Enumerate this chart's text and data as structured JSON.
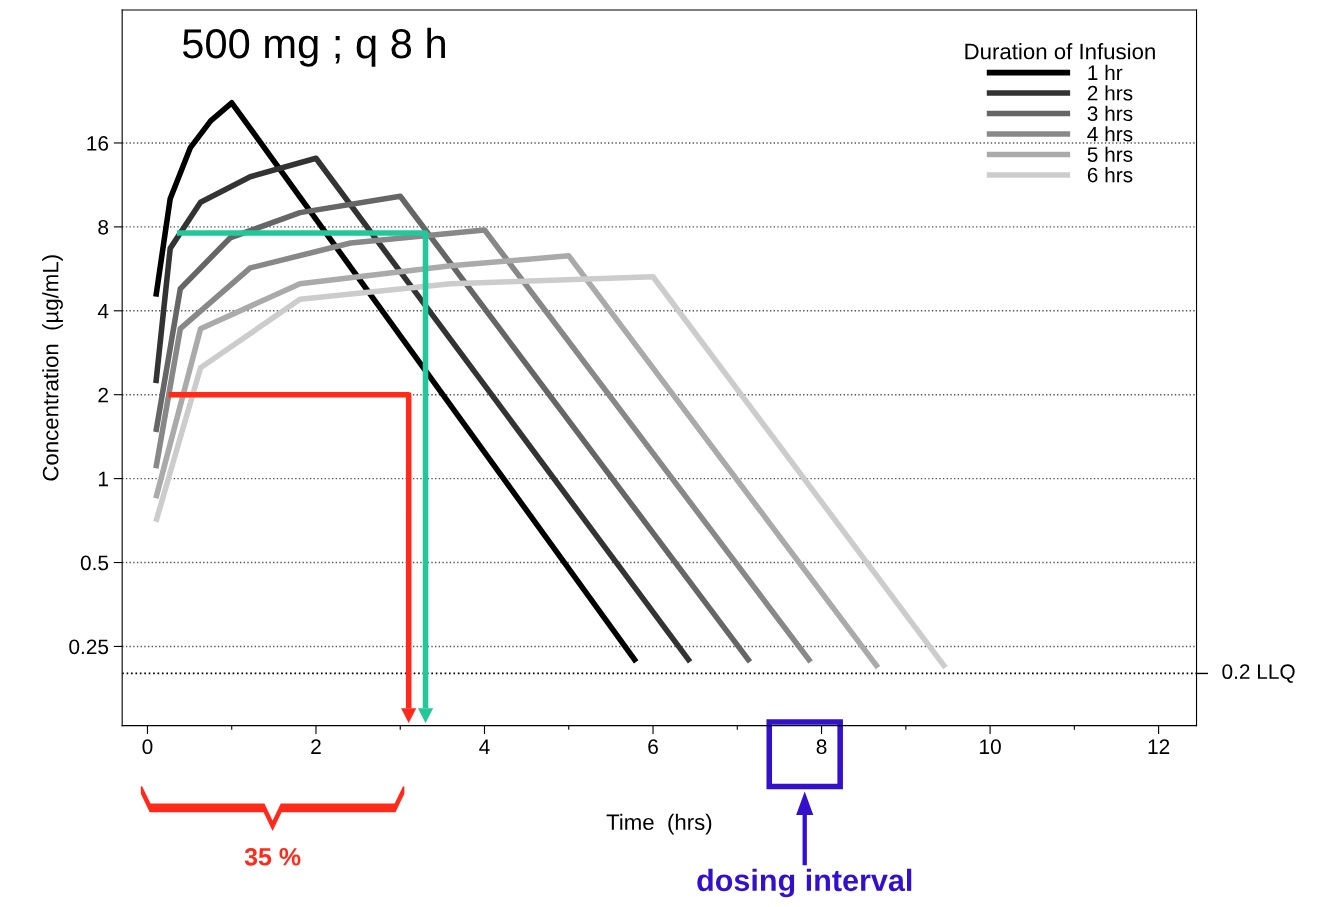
{
  "chart_data": {
    "type": "line",
    "title": "500 mg ; q 8 h",
    "xlabel": "Time  (hrs)",
    "ylabel": "Concentration  (µg/mL)",
    "legend_title": "Duration of Infusion",
    "legend": "top right",
    "log": "y",
    "grid": "y",
    "line_style": "solid",
    "xlim": [
      -0.3,
      12.45
    ],
    "xticks": [
      0,
      {
        "value": 1,
        "label": null
      },
      2,
      {
        "value": 3,
        "label": null
      },
      4,
      {
        "value": 5,
        "label": null
      },
      6,
      {
        "value": 7,
        "label": null
      },
      8,
      {
        "value": 9,
        "label": null
      },
      10,
      {
        "value": 11,
        "label": null
      },
      12
    ],
    "ylim": [
      0.13,
      48
    ],
    "yticks": [
      0.25,
      0.5,
      1,
      2,
      4,
      8,
      16
    ],
    "series": [
      {
        "name": "1 hr",
        "color": "#000000",
        "x": [
          0.1,
          0.27,
          0.51,
          0.75,
          1,
          5.8
        ],
        "values": [
          4.5,
          10.1,
          15.4,
          19.2,
          22.3,
          0.22
        ]
      },
      {
        "name": "2 hrs",
        "color": "#333333",
        "x": [
          0.1,
          0.27,
          0.63,
          1.22,
          2,
          6.44
        ],
        "values": [
          2.2,
          6.7,
          9.8,
          12.1,
          14.1,
          0.22
        ]
      },
      {
        "name": "3 hrs",
        "color": "#666666",
        "x": [
          0.1,
          0.39,
          0.98,
          1.81,
          3,
          7.15
        ],
        "values": [
          1.47,
          4.8,
          7.3,
          9.0,
          10.3,
          0.22
        ]
      },
      {
        "name": "4 hrs",
        "color": "#888888",
        "x": [
          0.1,
          0.39,
          1.22,
          2.41,
          4,
          7.87
        ],
        "values": [
          1.09,
          3.45,
          5.7,
          7.0,
          7.8,
          0.22
        ]
      },
      {
        "name": "5 hrs",
        "color": "#aaaaaa",
        "x": [
          0.1,
          0.63,
          1.81,
          3.6,
          5,
          8.67
        ],
        "values": [
          0.85,
          3.45,
          5.0,
          5.8,
          6.3,
          0.21
        ]
      },
      {
        "name": "6 hrs",
        "color": "#cccccc",
        "x": [
          0.1,
          0.63,
          1.81,
          3.6,
          6,
          9.47
        ],
        "values": [
          0.7,
          2.5,
          4.4,
          5.0,
          5.3,
          0.21
        ]
      },
      {
        "color": "#ff2a1a",
        "x": [
          0.25,
          3.1,
          3.1
        ],
        "values": [
          2,
          2,
          0.15
        ]
      },
      {
        "color": "#22c79a",
        "x": [
          0.35,
          3.3,
          3.3
        ],
        "values": [
          7.6,
          7.6,
          0.15
        ]
      }
    ],
    "ref_lines": [
      {
        "axis": "y",
        "value": 0.2,
        "label": "0.2 LLQ",
        "color": "#000000",
        "line_style": "dotted"
      }
    ],
    "annotations": [
      "35 %",
      "dosing interval"
    ]
  }
}
